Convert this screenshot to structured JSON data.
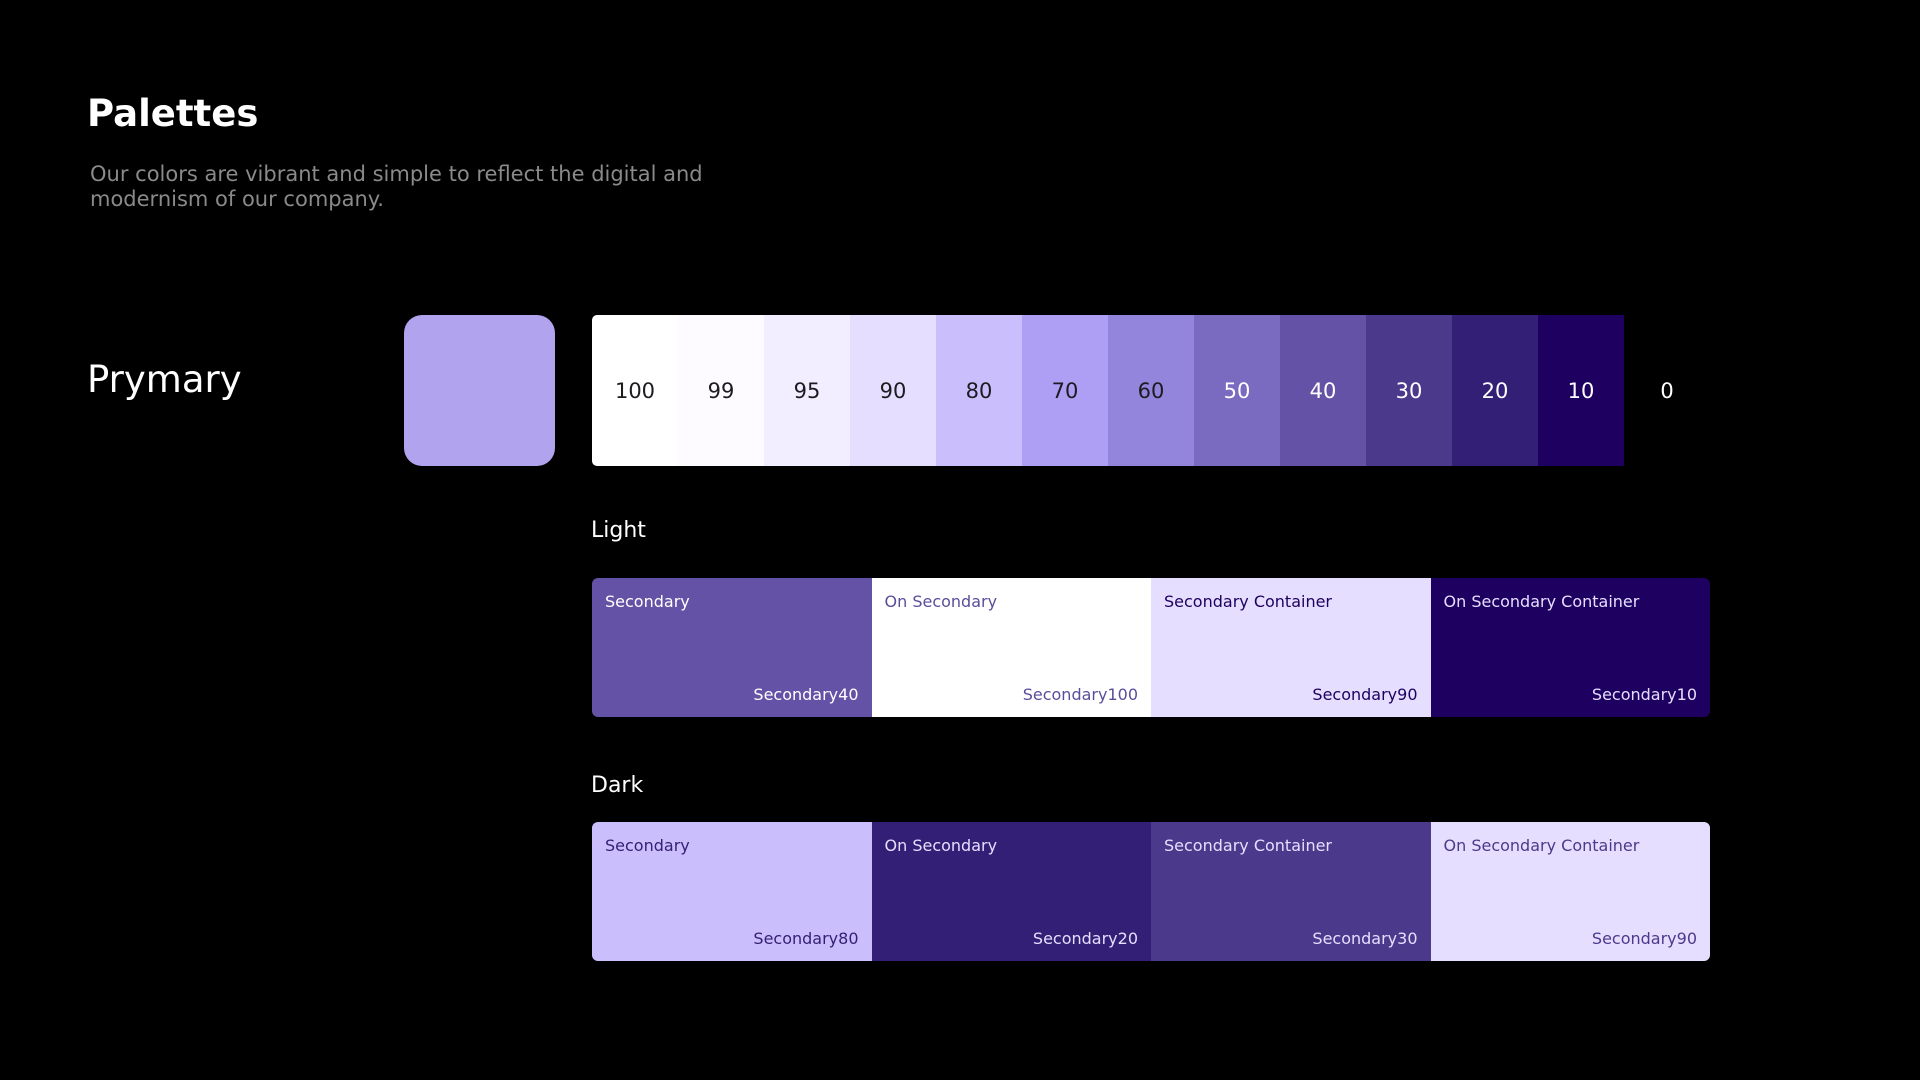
{
  "header": {
    "title": "Palettes",
    "description": "Our colors are vibrant and simple to reflect the digital and modernism of our company."
  },
  "palette": {
    "name": "Prymary",
    "key_color": "#b1a3ed",
    "tones": [
      {
        "label": "100",
        "color": "#ffffff",
        "text_color": "#1c1b1f"
      },
      {
        "label": "99",
        "color": "#fdfbff",
        "text_color": "#1c1b1f"
      },
      {
        "label": "95",
        "color": "#f3eeff",
        "text_color": "#1c1b1f"
      },
      {
        "label": "90",
        "color": "#e6deff",
        "text_color": "#1c1b1f"
      },
      {
        "label": "80",
        "color": "#cbbefd",
        "text_color": "#1c1b1f"
      },
      {
        "label": "70",
        "color": "#ae9ff4",
        "text_color": "#1c1b1f"
      },
      {
        "label": "60",
        "color": "#9485dc",
        "text_color": "#1c1b1f"
      },
      {
        "label": "50",
        "color": "#7a6bc1",
        "text_color": "#ffffff"
      },
      {
        "label": "40",
        "color": "#6352a5",
        "text_color": "#ffffff"
      },
      {
        "label": "30",
        "color": "#4b3a8c",
        "text_color": "#ffffff"
      },
      {
        "label": "20",
        "color": "#331f75",
        "text_color": "#ffffff"
      },
      {
        "label": "10",
        "color": "#1e0060",
        "text_color": "#ffffff"
      },
      {
        "label": "0",
        "color": "#000000",
        "text_color": "#ffffff"
      }
    ]
  },
  "light": {
    "label": "Light",
    "roles": [
      {
        "name": "Secondary",
        "token": "Secondary40",
        "bg": "#6352a5",
        "text_color": "#ffffff"
      },
      {
        "name": "On Secondary",
        "token": "Secondary100",
        "bg": "#ffffff",
        "text_color": "#5a4e9a"
      },
      {
        "name": "Secondary Container",
        "token": "Secondary90",
        "bg": "#e6deff",
        "text_color": "#1e0060"
      },
      {
        "name": "On Secondary Container",
        "token": "Secondary10",
        "bg": "#1e0060",
        "text_color": "#e6deff"
      }
    ]
  },
  "dark": {
    "label": "Dark",
    "roles": [
      {
        "name": "Secondary",
        "token": "Secondary80",
        "bg": "#cbbefd",
        "text_color": "#331f75"
      },
      {
        "name": "On Secondary",
        "token": "Secondary20",
        "bg": "#331f75",
        "text_color": "#e6deff"
      },
      {
        "name": "Secondary Container",
        "token": "Secondary30",
        "bg": "#4b3a8c",
        "text_color": "#e6deff"
      },
      {
        "name": "On Secondary Container",
        "token": "Secondary90",
        "bg": "#e6deff",
        "text_color": "#4b3a8c"
      }
    ]
  }
}
